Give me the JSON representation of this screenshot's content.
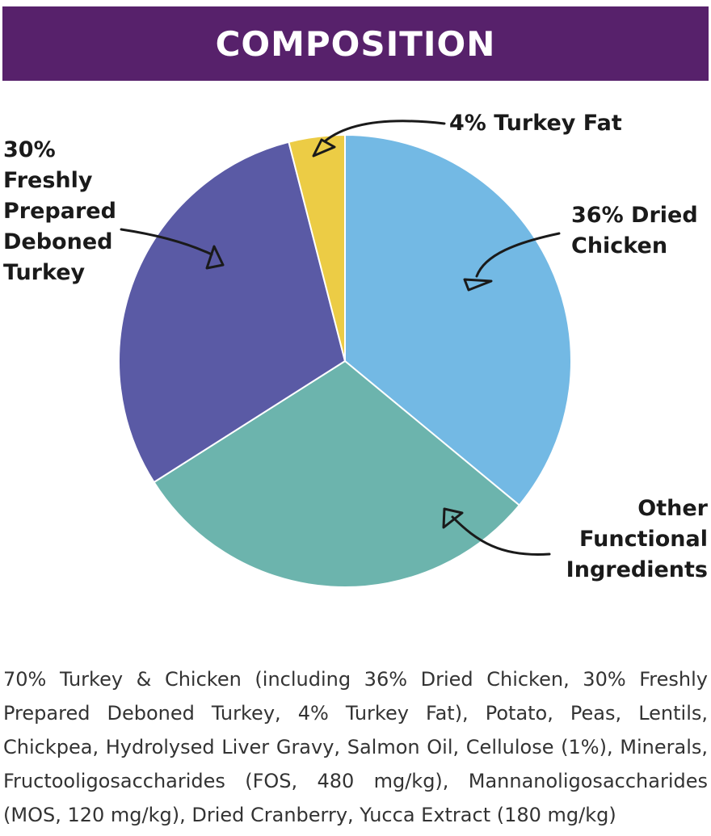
{
  "header": {
    "title": "COMPOSITION"
  },
  "colors": {
    "banner": "#57216b",
    "dried_chicken": "#73b9e4",
    "other_functional": "#6cb4ad",
    "turkey": "#5a5aa5",
    "turkey_fat": "#eccc45"
  },
  "chart_data": {
    "type": "pie",
    "title": "COMPOSITION",
    "slices": [
      {
        "label": "36% Dried Chicken",
        "value": 36,
        "color": "#73b9e4"
      },
      {
        "label": "Other Functional Ingredients",
        "value": 30,
        "color": "#6cb4ad"
      },
      {
        "label": "30% Freshly Prepared Deboned Turkey",
        "value": 30,
        "color": "#5a5aa5"
      },
      {
        "label": "4% Turkey Fat",
        "value": 4,
        "color": "#eccc45"
      }
    ],
    "label_lines": [
      [
        "36% Dried",
        "Chicken"
      ],
      [
        "Other",
        "Functional",
        "Ingredients"
      ],
      [
        "30%",
        "Freshly",
        "Prepared",
        "Deboned",
        "Turkey"
      ],
      [
        "4% Turkey Fat"
      ]
    ]
  },
  "composition_text": "70% Turkey & Chicken (including 36% Dried Chicken, 30% Freshly Prepared Deboned Turkey, 4% Turkey Fat), Potato, Peas, Lentils, Chickpea, Hydrolysed Liver Gravy, Salmon Oil, Cellulose (1%), Minerals, Fructooligosaccharides (FOS, 480 mg/kg), Mannanoligosaccharides (MOS, 120 mg/kg), Dried Cranberry, Yucca Extract (180 mg/kg)"
}
